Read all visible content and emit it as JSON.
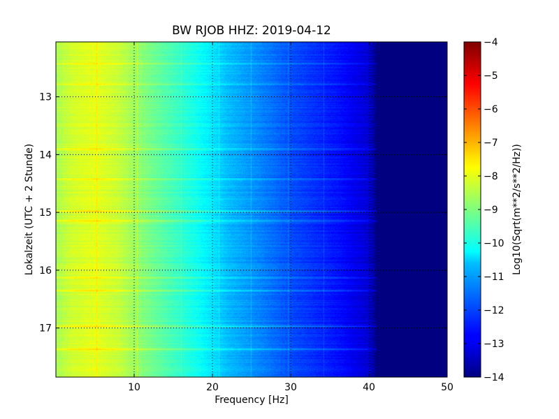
{
  "chart_data": {
    "type": "heatmap",
    "title": "BW RJOB HHZ: 2019-04-12",
    "xlabel": "Frequency [Hz]",
    "ylabel": "Lokalzeit (UTC + 2 Stunde)",
    "xlim": [
      0,
      50
    ],
    "ylim": [
      17.85,
      12.05
    ],
    "x_ticks": [
      10,
      20,
      30,
      40,
      50
    ],
    "y_ticks": [
      13,
      14,
      15,
      16,
      17
    ],
    "grid": true,
    "colormap": "jet",
    "colorbar": {
      "label": "Log10(Sqrt(m**2/s**2/Hz))",
      "range": [
        -14,
        -4
      ],
      "ticks": [
        -4,
        -5,
        -6,
        -7,
        -8,
        -9,
        -10,
        -11,
        -12,
        -13,
        -14
      ]
    },
    "spectral_profile": {
      "frequency_hz": [
        0,
        2,
        5,
        8,
        10,
        12,
        15,
        18,
        20,
        22,
        25,
        28,
        30,
        33,
        36,
        38,
        40,
        41,
        45,
        50
      ],
      "log10_amplitude": [
        -8.6,
        -8.2,
        -8.0,
        -8.3,
        -8.7,
        -9.1,
        -9.6,
        -10.1,
        -10.5,
        -10.9,
        -11.3,
        -11.7,
        -12.0,
        -12.3,
        -12.6,
        -12.9,
        -13.2,
        -14.0,
        -14.0,
        -14.0
      ]
    },
    "narrowband_lines_hz": [
      5.2,
      10.4,
      16.0,
      20.8,
      24.9,
      29.6,
      34.2
    ],
    "horizontal_streaks_hour": [
      12.42,
      12.78,
      13.9,
      14.42,
      14.98,
      15.14,
      16.12,
      16.35,
      16.97,
      17.37
    ]
  }
}
